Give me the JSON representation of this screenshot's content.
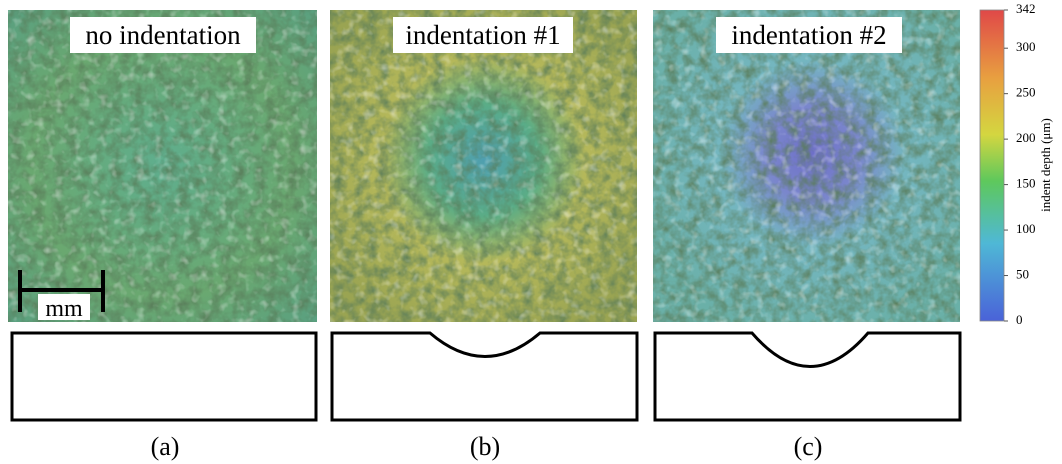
{
  "panels": [
    {
      "title": "no indentation",
      "caption": "(a)"
    },
    {
      "title": "indentation #1",
      "caption": "(b)"
    },
    {
      "title": "indentation #2",
      "caption": "(c)"
    }
  ],
  "scale_bar": "mm",
  "colorbar": {
    "label": "indent depth (μm)",
    "range": [
      0,
      342
    ],
    "ticks": [
      0,
      50,
      100,
      150,
      200,
      250,
      300,
      342
    ]
  }
}
